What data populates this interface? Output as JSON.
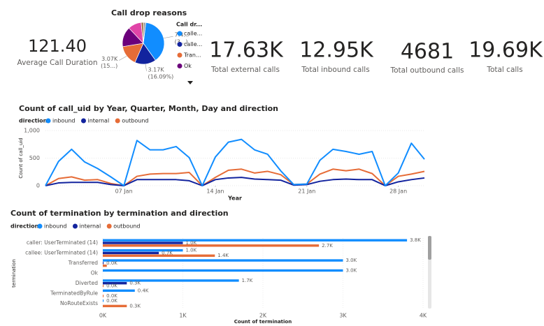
{
  "cards": [
    {
      "value": "121.40",
      "label": "Average Call Duration"
    },
    {
      "value": "17.63K",
      "label": "Total external calls"
    },
    {
      "value": "12.95K",
      "label": "Total inbound calls"
    },
    {
      "value": "4681",
      "label": "Total outbound calls"
    },
    {
      "value": "19.69K",
      "label": "Total calls"
    }
  ],
  "chart_data": [
    {
      "type": "pie",
      "title": "Call drop reasons",
      "legend_title": "Call dr...",
      "categories": [
        "calle...",
        "calle...",
        "Tran...",
        "Ok",
        null,
        null,
        null
      ],
      "values": [
        7400,
        3170,
        3070,
        3000,
        2000,
        400,
        300
      ],
      "value_labels": [
        [
          "7.4...",
          "(3...)"
        ],
        [
          "3.17K",
          "(16.09%)"
        ],
        [
          "3.07K",
          "(15...)"
        ],
        null,
        null,
        null,
        null
      ],
      "colors": [
        "#118DFF",
        "#12239E",
        "#E66C37",
        "#6B007B",
        "#E044A7",
        "#A67C52",
        "#9A9A9A"
      ]
    },
    {
      "type": "line",
      "title": "Count of call_uid by Year, Quarter, Month, Day and direction",
      "legend_title": "direction",
      "xlabel": "Year",
      "ylabel": "Count of call_uid",
      "x": [
        1,
        2,
        3,
        4,
        5,
        6,
        7,
        8,
        9,
        10,
        11,
        12,
        13,
        14,
        15,
        16,
        17,
        18,
        19,
        20,
        21,
        22,
        23,
        24,
        25,
        26,
        27,
        28,
        29,
        30
      ],
      "xlim": [
        1,
        30
      ],
      "xticks": [
        {
          "value": 7,
          "label": "07 Jan"
        },
        {
          "value": 14,
          "label": "14 Jan"
        },
        {
          "value": 21,
          "label": "21 Jan"
        },
        {
          "value": 28,
          "label": "28 Jan"
        }
      ],
      "ylim": [
        0,
        1000
      ],
      "yticks": [
        0,
        500,
        {
          "value": 1000,
          "label": "1,000"
        }
      ],
      "series": [
        {
          "name": "inbound",
          "color": "#118DFF",
          "values": [
            0,
            440,
            660,
            430,
            310,
            160,
            0,
            820,
            650,
            650,
            710,
            510,
            0,
            520,
            790,
            840,
            650,
            570,
            270,
            20,
            30,
            460,
            660,
            620,
            570,
            620,
            0,
            230,
            770,
            480
          ]
        },
        {
          "name": "internal",
          "color": "#12239E",
          "values": [
            0,
            50,
            60,
            60,
            60,
            20,
            0,
            110,
            110,
            110,
            110,
            90,
            0,
            110,
            140,
            150,
            120,
            110,
            100,
            10,
            20,
            80,
            110,
            120,
            110,
            110,
            0,
            70,
            110,
            140
          ]
        },
        {
          "name": "outbound",
          "color": "#E66C37",
          "values": [
            0,
            130,
            160,
            100,
            110,
            40,
            0,
            170,
            210,
            220,
            220,
            240,
            0,
            150,
            280,
            300,
            230,
            260,
            200,
            20,
            30,
            210,
            300,
            270,
            300,
            220,
            0,
            170,
            210,
            260
          ]
        }
      ]
    },
    {
      "type": "hbar",
      "title": "Count of termination by termination and direction",
      "legend_title": "direction",
      "xlabel": "Count of termination",
      "ylabel": "termination",
      "categories": [
        "caller: UserTerminated (14)",
        "callee: UserTerminated (14)",
        "Transferred",
        "Ok",
        "Diverted",
        "TerminatedByRule",
        "NoRouteExists"
      ],
      "xlim": [
        0,
        4000
      ],
      "xticks": [
        {
          "value": 0,
          "label": "0K"
        },
        {
          "value": 1000,
          "label": "1K"
        },
        {
          "value": 2000,
          "label": "2K"
        },
        {
          "value": 3000,
          "label": "3K"
        },
        {
          "value": 4000,
          "label": "4K"
        }
      ],
      "series": [
        {
          "name": "inbound",
          "color": "#118DFF",
          "values": [
            3800,
            1000,
            3000,
            3000,
            1700,
            400,
            10
          ],
          "value_labels": [
            "3.8K",
            "1.0K",
            "3.0K",
            "3.0K",
            "1.7K",
            "0.4K",
            "0.0K"
          ]
        },
        {
          "name": "internal",
          "color": "#12239E",
          "values": [
            1000,
            700,
            10,
            null,
            300,
            null,
            null
          ],
          "value_labels": [
            "1.0K",
            "0.7K",
            "0.0K",
            null,
            "0.3K",
            null,
            null
          ]
        },
        {
          "name": "outbound",
          "color": "#E66C37",
          "values": [
            2700,
            1400,
            50,
            null,
            10,
            10,
            300
          ],
          "value_labels": [
            "2.7K",
            "1.4K",
            null,
            null,
            "0.0K",
            "0.0K",
            "0.3K"
          ]
        }
      ]
    }
  ]
}
